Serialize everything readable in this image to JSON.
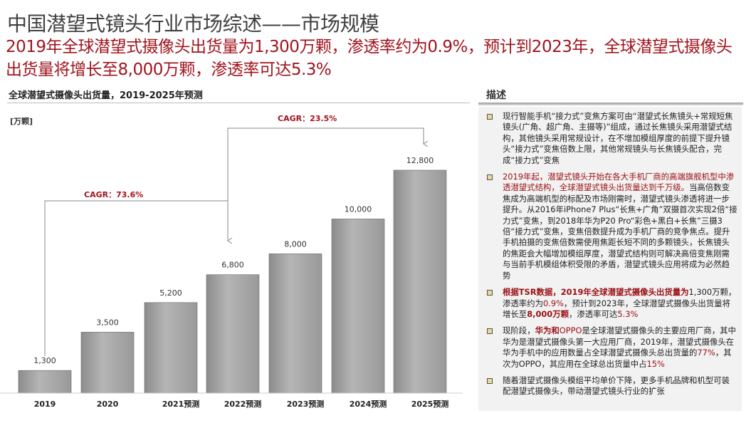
{
  "title": "中国潜望式镜头行业市场综述——市场规模",
  "subtitle": "2019年全球潜望式摄像头出货量为1,300万颗，渗透率约为0.9%，预计到2023年，全球潜望式摄像头出货量将增长至8,000万颗，渗透率可达5.3%",
  "chart_section_title": "全球潜望式摄像头出货量，2019-2025年预测",
  "desc_title": "描述",
  "chart_data": {
    "type": "bar",
    "title": "全球潜望式摄像头出货量，2019-2025年预测",
    "ylabel": "[万颗]",
    "categories": [
      "2019",
      "2020",
      "2021预测",
      "2022预测",
      "2023预测",
      "2024预测",
      "2025预测"
    ],
    "values": [
      1300,
      3500,
      5200,
      6800,
      8000,
      10000,
      12800
    ],
    "value_labels": [
      "1,300",
      "3,500",
      "5,200",
      "6,800",
      "8,000",
      "10,000",
      "12,800"
    ],
    "ylim": [
      0,
      12800
    ],
    "annotations": [
      {
        "text": "CAGR：73.6%",
        "from": "2019",
        "to": "2022预测"
      },
      {
        "text": "CAGR：23.5%",
        "from": "2022预测",
        "to": "2025预测"
      }
    ],
    "bar_color": "#a6a6a6"
  },
  "desc": [
    {
      "parts": [
        {
          "t": "现行智能手机“接力式”变焦方案可由“潜望式长焦镜头+常规短焦镜头(广角、超广角、主摄等)”组成，通过长焦镜头采用潜望式结构，其他镜头采用常规设计，在不增加模组厚度的前提下提升镜头“接力式”变焦倍数上限，其他常规镜头与长焦镜头配合，完成“接力式”变焦"
        }
      ]
    },
    {
      "parts": [
        {
          "t": "2019年起，潜望式镜头开始在各大手机厂商的高端旗舰机型中渗透潜望式结构，全球潜望式镜头出货量达到千万级。",
          "c": "red"
        },
        {
          "t": "当高倍数变焦成为高端机型的标配及市场刚需时，潜望式镜头渗透将进一步提升。从2016年iPhone7 Plus“长焦+广角”双摄首次实现2倍“接力式”变焦，到2018年华为P20 Pro“彩色+黑白+长焦”三摄3倍“接力式”变焦，变焦倍数提升成为手机厂商的竞争焦点。提升手机拍摄的变焦倍数需使用焦距长短不同的多颗镜头，长焦镜头的焦距会大幅增加模组厚度，潜望式结构则可解决高倍变焦刚需与当前手机模组体积受限的矛盾，潜望式镜头应用将成为必然趋势"
        }
      ]
    },
    {
      "parts": [
        {
          "t": "根据TSR数据，2019年全球潜望式摄像头出货量为",
          "c": "red b"
        },
        {
          "t": "1,300万颗，渗透率约为"
        },
        {
          "t": "0.9%",
          "c": "red"
        },
        {
          "t": "，预计到2023年，全球潜望式摄像头出货量将增长至"
        },
        {
          "t": "8,000万颗",
          "c": "red b"
        },
        {
          "t": "，渗透率可达"
        },
        {
          "t": "5.3%",
          "c": "red"
        }
      ]
    },
    {
      "parts": [
        {
          "t": "现阶段，"
        },
        {
          "t": "华为和",
          "c": "red b"
        },
        {
          "t": "OPPO",
          "c": "red"
        },
        {
          "t": "是全球潜望式摄像头的主要应用厂商，其中华为是潜望式摄像头第一大应用厂商，2019年，潜望式摄像头在华为手机中的应用数量占全球潜望式摄像头总出货量的"
        },
        {
          "t": "77%",
          "c": "red"
        },
        {
          "t": "，其次为OPPO，其应用在全球总出货量中占"
        },
        {
          "t": "15%",
          "c": "red"
        }
      ]
    },
    {
      "parts": [
        {
          "t": "随着潜望式摄像头模组平均单价下降，更多手机品牌和机型可装配潜望式摄像头，带动潜望式镜头行业的扩张"
        }
      ]
    }
  ]
}
